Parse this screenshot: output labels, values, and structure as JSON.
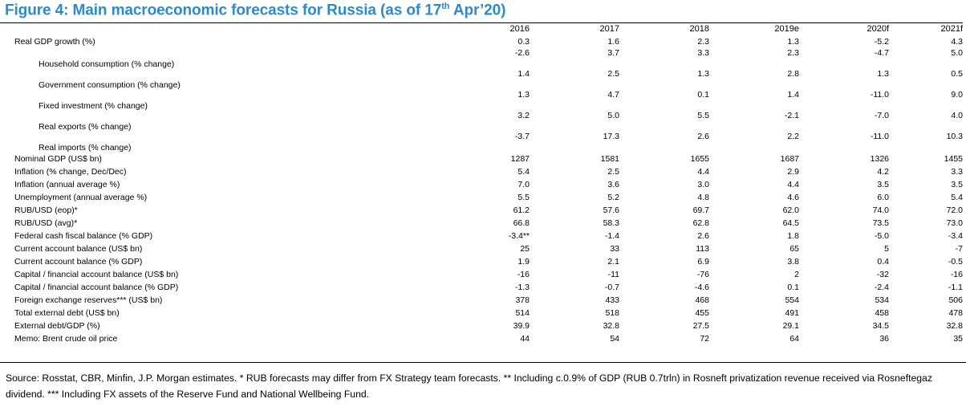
{
  "title_main": "Figure 4: Main macroeconomic forecasts for Russia (as of 17",
  "title_sup": "th",
  "title_end": " Apr’20)",
  "table": {
    "columns": [
      "2016",
      "2017",
      "2018",
      "2019e",
      "2020f",
      "2021f"
    ],
    "rows": [
      {
        "label": "Real GDP growth (%)",
        "sub": false,
        "values": [
          "0.3",
          "1.6",
          "2.3",
          "1.3",
          "-5.2",
          "4.3"
        ]
      },
      {
        "label": "Household consumption (% change)",
        "sub": true,
        "values": [
          "-2.6",
          "3.7",
          "3.3",
          "2.3",
          "-4.7",
          "5.0"
        ]
      },
      {
        "label": "Government consumption (% change)",
        "sub": true,
        "values": [
          "1.4",
          "2.5",
          "1.3",
          "2.8",
          "1.3",
          "0.5"
        ]
      },
      {
        "label": "Fixed investment (% change)",
        "sub": true,
        "values": [
          "1.3",
          "4.7",
          "0.1",
          "1.4",
          "-11.0",
          "9.0"
        ]
      },
      {
        "label": "Real exports (% change)",
        "sub": true,
        "values": [
          "3.2",
          "5.0",
          "5.5",
          "-2.1",
          "-7.0",
          "4.0"
        ]
      },
      {
        "label": "Real imports (% change)",
        "sub": true,
        "values": [
          "-3.7",
          "17.3",
          "2.6",
          "2.2",
          "-11.0",
          "10.3"
        ]
      },
      {
        "label": "Nominal GDP (US$ bn)",
        "sub": false,
        "values": [
          "1287",
          "1581",
          "1655",
          "1687",
          "1326",
          "1455"
        ]
      },
      {
        "label": "Inflation (% change, Dec/Dec)",
        "sub": false,
        "values": [
          "5.4",
          "2.5",
          "4.4",
          "2.9",
          "4.2",
          "3.3"
        ]
      },
      {
        "label": "Inflation (annual average %)",
        "sub": false,
        "values": [
          "7.0",
          "3.6",
          "3.0",
          "4.4",
          "3.5",
          "3.5"
        ]
      },
      {
        "label": "Unemployment (annual average %)",
        "sub": false,
        "values": [
          "5.5",
          "5.2",
          "4.8",
          "4.6",
          "6.0",
          "5.4"
        ]
      },
      {
        "label": "RUB/USD (eop)*",
        "sub": false,
        "values": [
          "61.2",
          "57.6",
          "69.7",
          "62.0",
          "74.0",
          "72.0"
        ]
      },
      {
        "label": "RUB/USD (avg)*",
        "sub": false,
        "values": [
          "66.8",
          "58.3",
          "62.8",
          "64.5",
          "73.5",
          "73.0"
        ]
      },
      {
        "label": "Federal cash fiscal balance (% GDP)",
        "sub": false,
        "values": [
          "-3.4**",
          "-1.4",
          "2.6",
          "1.8",
          "-5.0",
          "-3.4"
        ]
      },
      {
        "label": "Current account balance (US$ bn)",
        "sub": false,
        "values": [
          "25",
          "33",
          "113",
          "65",
          "5",
          "-7"
        ]
      },
      {
        "label": "Current account balance (% GDP)",
        "sub": false,
        "values": [
          "1.9",
          "2.1",
          "6.9",
          "3.8",
          "0.4",
          "-0.5"
        ]
      },
      {
        "label": "Capital / financial account balance (US$ bn)",
        "sub": false,
        "values": [
          "-16",
          "-11",
          "-76",
          "2",
          "-32",
          "-16"
        ]
      },
      {
        "label": "Capital / financial account balance (% GDP)",
        "sub": false,
        "values": [
          "-1.3",
          "-0.7",
          "-4.6",
          "0.1",
          "-2.4",
          "-1.1"
        ]
      },
      {
        "label": "Foreign exchange reserves*** (US$ bn)",
        "sub": false,
        "values": [
          "378",
          "433",
          "468",
          "554",
          "534",
          "506"
        ]
      },
      {
        "label": "Total external debt (US$ bn)",
        "sub": false,
        "values": [
          "514",
          "518",
          "455",
          "491",
          "458",
          "478"
        ]
      },
      {
        "label": "External debt/GDP (%)",
        "sub": false,
        "values": [
          "39.9",
          "32.8",
          "27.5",
          "29.1",
          "34.5",
          "32.8"
        ]
      },
      {
        "label": "Memo: Brent crude oil price",
        "sub": false,
        "values": [
          "44",
          "54",
          "72",
          "64",
          "36",
          "35"
        ]
      }
    ]
  },
  "footnote": "Source: Rosstat, CBR, Minfin, J.P. Morgan estimates. * RUB forecasts may differ from FX Strategy team forecasts. ** Including c.0.9% of GDP (RUB 0.7trln) in Rosneft privatization revenue received via Rosneftegaz dividend. *** Including FX assets of the Reserve Fund and National Wellbeing Fund.",
  "colors": {
    "title": "#2e8bc9",
    "text": "#000000"
  }
}
